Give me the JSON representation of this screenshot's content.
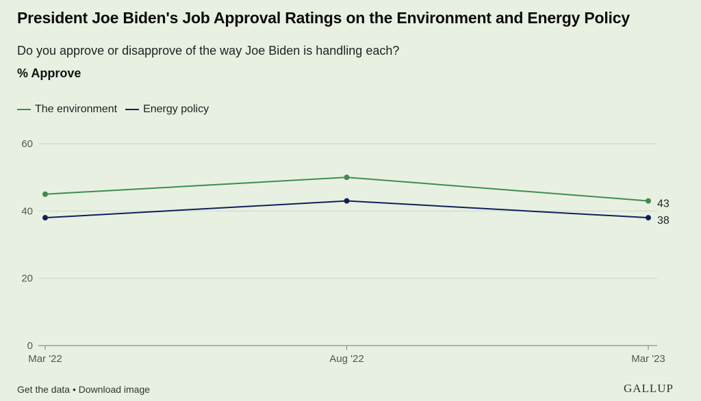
{
  "header": {
    "title": "President Joe Biden's Job Approval Ratings on the Environment and Energy Policy",
    "subtitle": "Do you approve or disapprove of the way Joe Biden is handling each?",
    "measure": "% Approve"
  },
  "colors": {
    "background": "#e8f0e1",
    "environment": "#3d8c4f",
    "energy": "#0f1f5c",
    "grid": "#cfd6c8",
    "axis": "#777777"
  },
  "chart_data": {
    "type": "line",
    "title": "President Joe Biden's Job Approval Ratings on the Environment and Energy Policy",
    "subtitle": "Do you approve or disapprove of the way Joe Biden is handling each?",
    "ylabel": "% Approve",
    "x": [
      "Mar '22",
      "Aug '22",
      "Mar '23"
    ],
    "yticks": [
      0,
      20,
      40,
      60
    ],
    "ylim": [
      0,
      60
    ],
    "grid": true,
    "legend_position": "top-left",
    "series": [
      {
        "name": "The environment",
        "values": [
          45,
          50,
          43
        ],
        "end_label": "43"
      },
      {
        "name": "Energy policy",
        "values": [
          38,
          43,
          38
        ],
        "end_label": "38"
      }
    ]
  },
  "footer": {
    "get_data": "Get the data",
    "separator": "•",
    "download": "Download image",
    "logo": "GALLUP"
  }
}
